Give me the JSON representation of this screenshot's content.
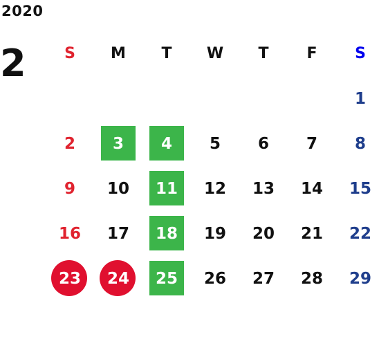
{
  "calendar": {
    "year": "2020",
    "month": "2",
    "weekdays": [
      "S",
      "M",
      "T",
      "W",
      "T",
      "F",
      "S"
    ],
    "weeks": [
      [
        "",
        "",
        "",
        "",
        "",
        "",
        "1"
      ],
      [
        "2",
        "3",
        "4",
        "5",
        "6",
        "7",
        "8"
      ],
      [
        "9",
        "10",
        "11",
        "12",
        "13",
        "14",
        "15"
      ],
      [
        "16",
        "17",
        "18",
        "19",
        "20",
        "21",
        "22"
      ],
      [
        "23",
        "24",
        "25",
        "26",
        "27",
        "28",
        "29"
      ]
    ],
    "highlighted_green": [
      "3",
      "4",
      "11",
      "18",
      "25"
    ],
    "highlighted_red": [
      "23",
      "24"
    ]
  },
  "colors": {
    "green_highlight": "#3cb54a",
    "red_highlight": "#e0102f",
    "sunday": "#e0232f",
    "saturday": "#1f3e8c",
    "saturday_header": "#0000ee",
    "text": "#111111"
  }
}
